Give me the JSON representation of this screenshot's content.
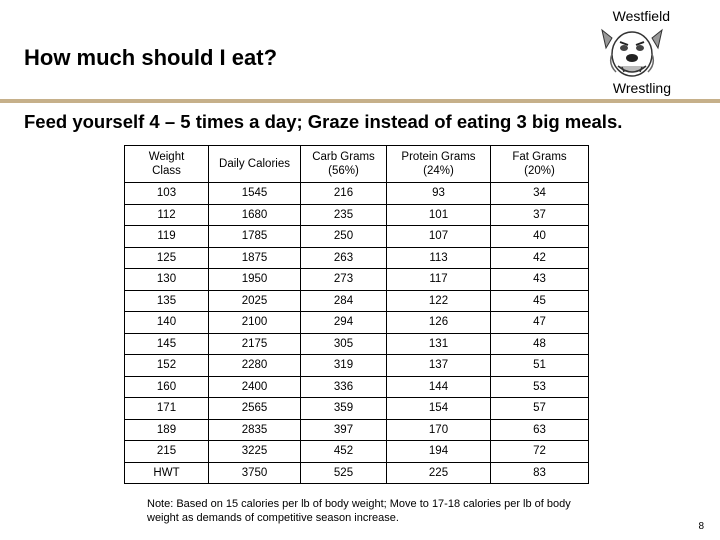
{
  "header": {
    "school_top": "Westfield",
    "school_bottom": "Wrestling",
    "title": "How much should I eat?",
    "subtitle": "Feed yourself 4 – 5 times a day; Graze instead of eating 3 big meals."
  },
  "colors": {
    "rule": "#c6b08a"
  },
  "table": {
    "columns": [
      [
        "Weight",
        "Class"
      ],
      [
        "Daily Calories",
        ""
      ],
      [
        "Carb Grams",
        "(56%)"
      ],
      [
        "Protein Grams",
        "(24%)"
      ],
      [
        "Fat Grams",
        "(20%)"
      ]
    ],
    "rows": [
      [
        "103",
        "1545",
        "216",
        "93",
        "34"
      ],
      [
        "112",
        "1680",
        "235",
        "101",
        "37"
      ],
      [
        "119",
        "1785",
        "250",
        "107",
        "40"
      ],
      [
        "125",
        "1875",
        "263",
        "113",
        "42"
      ],
      [
        "130",
        "1950",
        "273",
        "117",
        "43"
      ],
      [
        "135",
        "2025",
        "284",
        "122",
        "45"
      ],
      [
        "140",
        "2100",
        "294",
        "126",
        "47"
      ],
      [
        "145",
        "2175",
        "305",
        "131",
        "48"
      ],
      [
        "152",
        "2280",
        "319",
        "137",
        "51"
      ],
      [
        "160",
        "2400",
        "336",
        "144",
        "53"
      ],
      [
        "171",
        "2565",
        "359",
        "154",
        "57"
      ],
      [
        "189",
        "2835",
        "397",
        "170",
        "63"
      ],
      [
        "215",
        "3225",
        "452",
        "194",
        "72"
      ],
      [
        "HWT",
        "3750",
        "525",
        "225",
        "83"
      ]
    ]
  },
  "footer": {
    "note": "Note: Based on 15 calories per lb of body weight; Move to 17-18 calories per lb of body weight as demands of competitive season increase.",
    "page_number": "8"
  }
}
